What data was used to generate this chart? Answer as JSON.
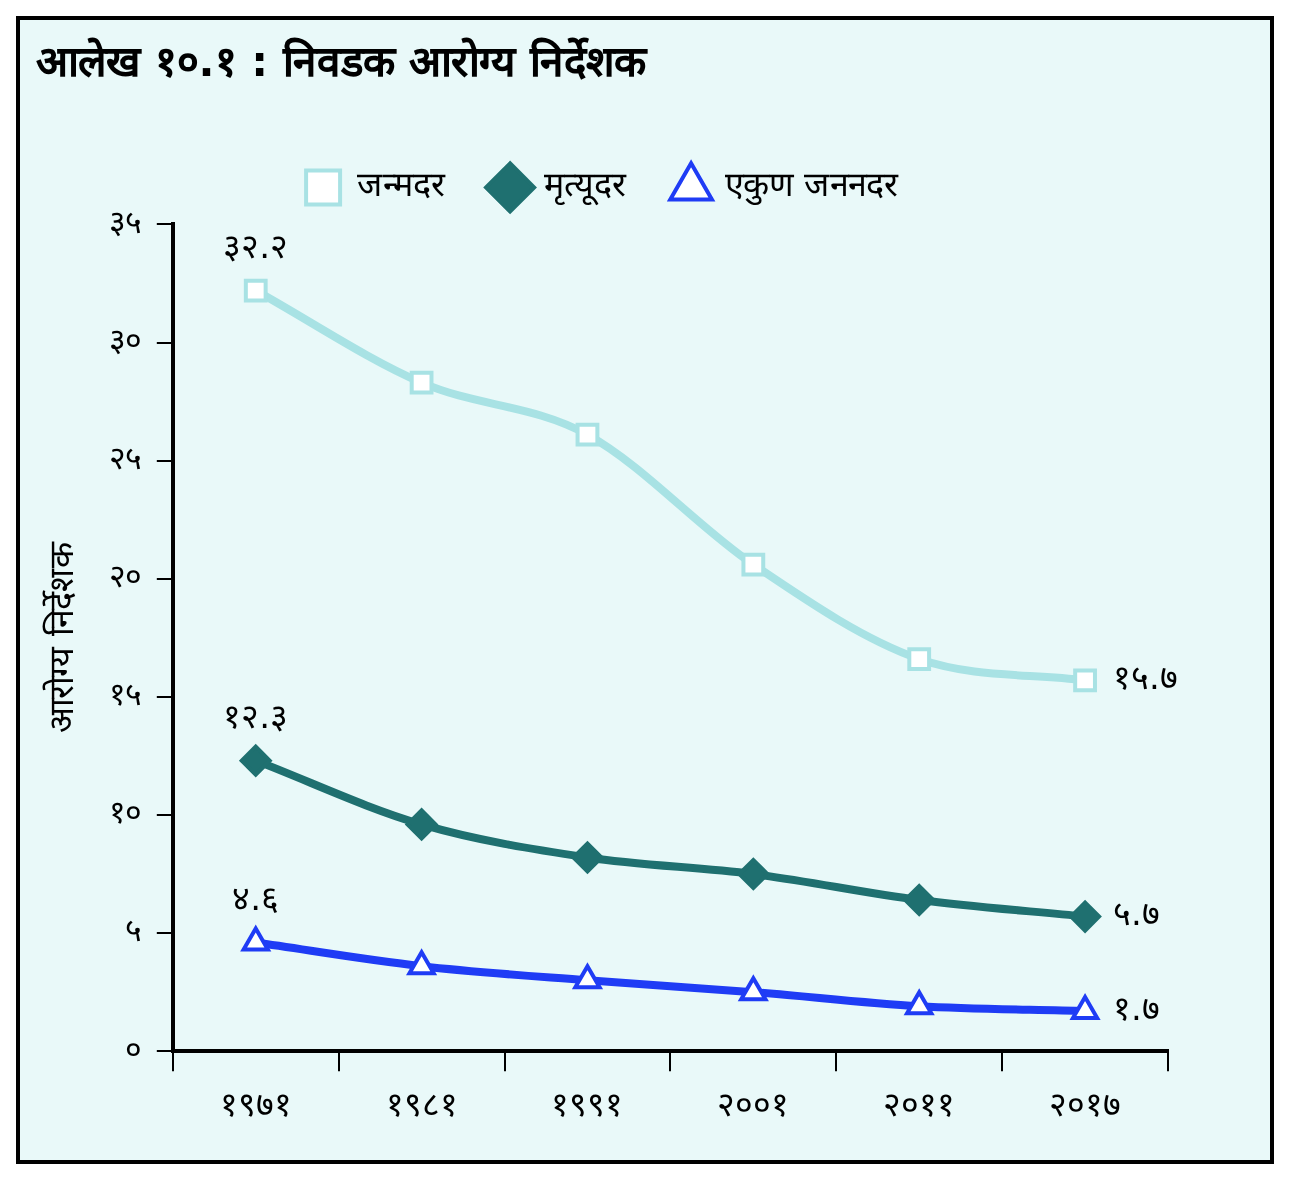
{
  "chart_data": {
    "type": "line",
    "title": "आलेख १०.१ : निवडक आरोग्य निर्देशक",
    "ylabel": "आरोग्य निर्देशक",
    "categories": [
      "१९७१",
      "१९८१",
      "१९९१",
      "२००१",
      "२०११",
      "२०१७"
    ],
    "series": [
      {
        "name": "जन्मदर",
        "color": "#a8e2e4",
        "marker": "square",
        "values": [
          32.2,
          28.3,
          26.1,
          20.6,
          16.6,
          15.7
        ],
        "value_labels": [
          "३२.२",
          null,
          null,
          null,
          null,
          "१५.७"
        ]
      },
      {
        "name": "मृत्यूदर",
        "color": "#1f7070",
        "marker": "diamond",
        "values": [
          12.3,
          9.6,
          8.2,
          7.5,
          6.4,
          5.7
        ],
        "value_labels": [
          "१२.३",
          null,
          null,
          null,
          null,
          "५.७"
        ]
      },
      {
        "name": "एकुण जननदर",
        "color": "#1f3cf5",
        "marker": "triangle",
        "values": [
          4.6,
          3.6,
          3.0,
          2.5,
          1.9,
          1.7
        ],
        "value_labels": [
          "४.६",
          null,
          null,
          null,
          null,
          "१.७"
        ]
      }
    ],
    "ylim": [
      0,
      35
    ],
    "yticks": [
      {
        "value": 0,
        "label": "०"
      },
      {
        "value": 5,
        "label": "५"
      },
      {
        "value": 10,
        "label": "१०"
      },
      {
        "value": 15,
        "label": "१५"
      },
      {
        "value": 20,
        "label": "२०"
      },
      {
        "value": 25,
        "label": "२५"
      },
      {
        "value": 30,
        "label": "३०"
      },
      {
        "value": 35,
        "label": "३५"
      }
    ],
    "legend": "top",
    "grid": false,
    "line_style": "solid"
  }
}
